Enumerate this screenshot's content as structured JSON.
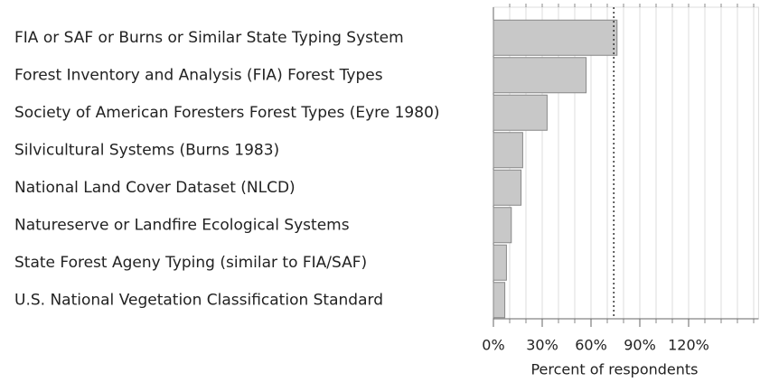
{
  "chart_data": {
    "type": "barh",
    "x_label": "Percent of respondents",
    "categories": [
      "FIA or SAF or Burns or Similar State Typing System",
      "Forest Inventory and Analysis (FIA) Forest Types",
      "Society of American Foresters Forest Types (Eyre 1980)",
      "Silvicultural Systems (Burns 1983)",
      "National Land Cover Dataset (NLCD)",
      "Natureserve or Landfire Ecological Systems",
      "State Forest Ageny Typing (similar to FIA/SAF)",
      "U.S. National Vegetation Classification Standard"
    ],
    "values": [
      76,
      57,
      33,
      18,
      17,
      11,
      8,
      7
    ],
    "color": "#c8c8c8",
    "xlim": [
      0,
      163
    ],
    "xticks": [
      {
        "value": 0,
        "label": "0%"
      },
      {
        "value": 30,
        "label": "30%"
      },
      {
        "value": 60,
        "label": "60%"
      },
      {
        "value": 90,
        "label": "90%"
      },
      {
        "value": 120,
        "label": "120%"
      }
    ],
    "xgrid": [
      10,
      20,
      30,
      40,
      50,
      60,
      70,
      80,
      90,
      100,
      110,
      120,
      130,
      140,
      150,
      160
    ],
    "reference_line": 74,
    "grid": true
  }
}
